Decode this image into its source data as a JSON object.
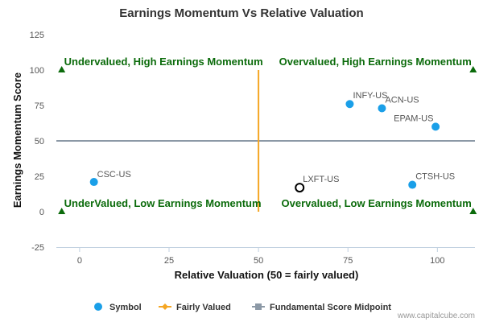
{
  "chart_data": {
    "type": "scatter",
    "title": "Earnings Momentum Vs Relative Valuation",
    "xlabel": "Relative Valuation (50 = fairly valued)",
    "ylabel": "Earnings Momentum Score",
    "xlim": [
      -6.5,
      110.5
    ],
    "ylim": [
      -25,
      125
    ],
    "x_ticks": [
      0,
      25,
      50,
      75,
      100
    ],
    "y_ticks": [
      -25,
      0,
      25,
      50,
      75,
      100,
      125
    ],
    "grid": false,
    "fairly_valued_x": 50,
    "midpoint_y": 50,
    "points": [
      {
        "label": "CSC-US",
        "x": 4,
        "y": 21,
        "highlight": false
      },
      {
        "label": "LXFT-US",
        "x": 61.5,
        "y": 17,
        "highlight": true
      },
      {
        "label": "INFY-US",
        "x": 75.5,
        "y": 76,
        "highlight": false
      },
      {
        "label": "ACN-US",
        "x": 84.5,
        "y": 73,
        "highlight": false
      },
      {
        "label": "EPAM-US",
        "x": 99.5,
        "y": 60,
        "highlight": false
      },
      {
        "label": "CTSH-US",
        "x": 93,
        "y": 19,
        "highlight": false
      }
    ],
    "quadrant_labels": [
      {
        "text": "Undervalued, High Earnings Momentum",
        "x": -5,
        "y": 100
      },
      {
        "text": "Overvalued, High Earnings Momentum",
        "x": 110,
        "y": 100
      },
      {
        "text": "UnderValued, Low Earnings Momentum",
        "x": -5,
        "y": 0
      },
      {
        "text": "Overvalued, Low Earnings Momentum",
        "x": 110,
        "y": 0
      }
    ],
    "legend": {
      "placement": "bottom",
      "items": [
        {
          "name": "Symbol",
          "kind": "dot"
        },
        {
          "name": "Fairly Valued",
          "kind": "line-diamond"
        },
        {
          "name": "Fundamental Score Midpoint",
          "kind": "line-square"
        }
      ]
    },
    "colors": {
      "point": "#1a9fe8",
      "highlight_stroke": "#000000",
      "fairly_valued": "#f5a623",
      "midpoint": "#8c99a6",
      "quadrant_text": "#0b6b0b",
      "marker": "#0b6b0b"
    }
  },
  "credit": "www.capitalcube.com"
}
